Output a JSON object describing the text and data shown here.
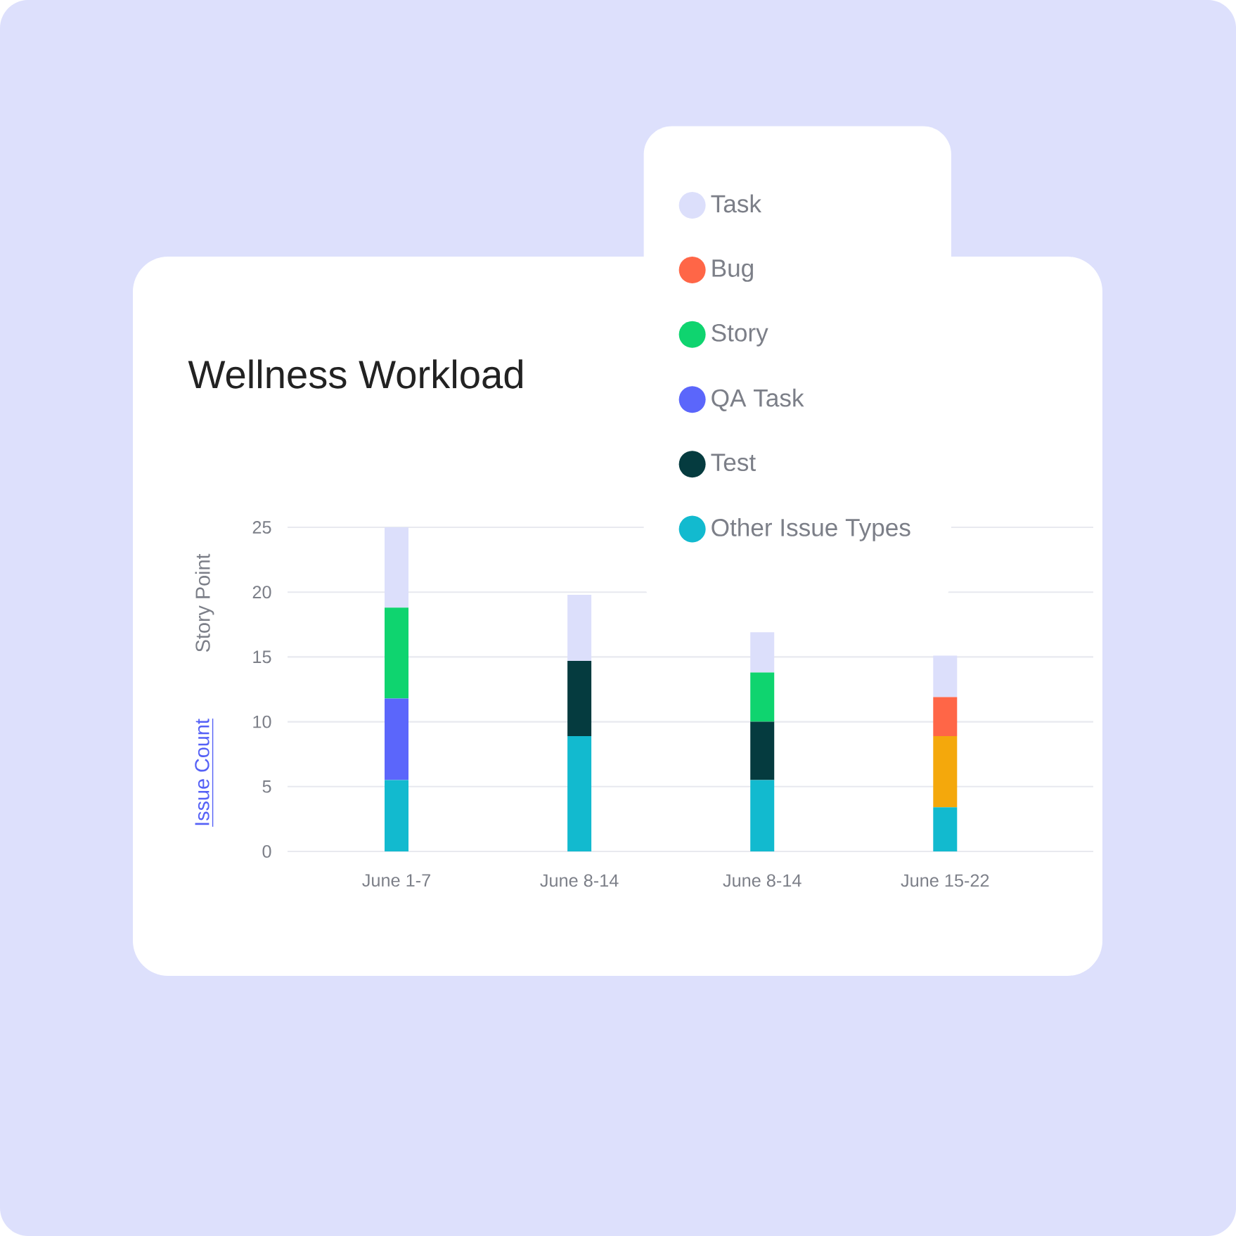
{
  "chart_data": {
    "type": "bar",
    "stacked": true,
    "title": "Wellness Workload",
    "ylabel": "Story Point",
    "annotations": [
      "Issue Count"
    ],
    "categories": [
      "June 1-7",
      "June 8-14",
      "June 8-14",
      "June 15-22"
    ],
    "series": [
      {
        "name": "Other Issue Types",
        "color": "#12bacf",
        "values": [
          5.5,
          8.9,
          5.5,
          3.4
        ]
      },
      {
        "name": "Test",
        "color": "#053b3f",
        "values": [
          null,
          5.8,
          4.5,
          null
        ]
      },
      {
        "name": "QA Task",
        "color": "#5b66fb",
        "values": [
          6.3,
          null,
          null,
          null
        ]
      },
      {
        "color": "#f4a80c",
        "values": [
          null,
          null,
          null,
          5.5
        ]
      },
      {
        "name": "Story",
        "color": "#0fd46f",
        "values": [
          7.0,
          null,
          3.8,
          null
        ]
      },
      {
        "name": "Bug",
        "color": "#ff6647",
        "values": [
          null,
          null,
          null,
          3.0
        ]
      },
      {
        "name": "Task",
        "color": "#dcdffb",
        "values": [
          6.2,
          5.1,
          3.1,
          3.2
        ]
      }
    ],
    "ylim": [
      0,
      25
    ],
    "yticks": [
      0,
      5,
      10,
      15,
      20,
      25
    ],
    "grid": "y",
    "legend": "top right"
  }
}
